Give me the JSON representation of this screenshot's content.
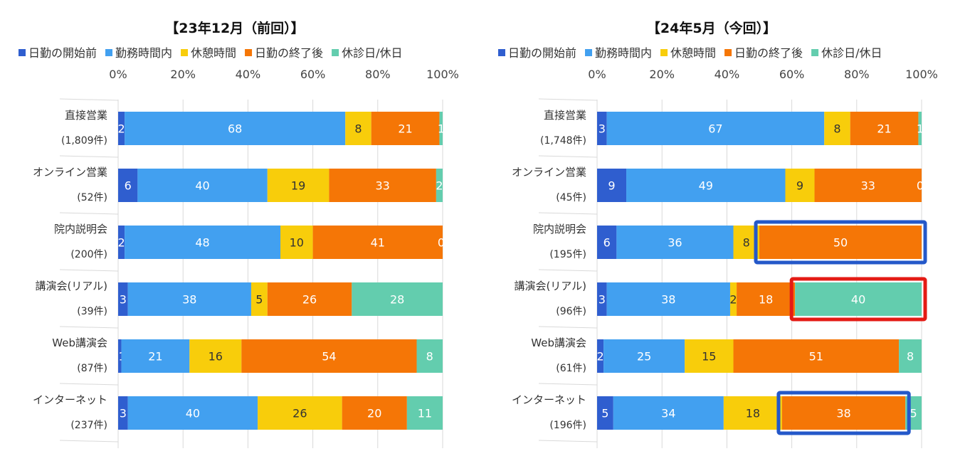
{
  "colors": {
    "日勤の開始前": "#2f5ecf",
    "勤務時間内": "#42a0f0",
    "休憩時間": "#f8cd0b",
    "日勤の終了後": "#f57606",
    "休診日/休日": "#63cdae",
    "highlight_blue": "#2458c9",
    "highlight_red": "#e41b14"
  },
  "chart_data": [
    {
      "type": "bar",
      "orientation": "horizontal",
      "stacked": true,
      "title": "【23年12月（前回）】",
      "xlim": [
        0,
        100
      ],
      "xticks": [
        "0%",
        "20%",
        "40%",
        "60%",
        "80%",
        "100%"
      ],
      "series_names": [
        "日勤の開始前",
        "勤務時間内",
        "休憩時間",
        "日勤の終了後",
        "休診日/休日"
      ],
      "categories": [
        {
          "name": "直接営業",
          "count": "(1,809件)",
          "values": [
            2,
            68,
            8,
            21,
            1
          ],
          "labels": [
            "2",
            "68",
            "8",
            "21",
            "1"
          ]
        },
        {
          "name": "オンライン営業",
          "count": "(52件)",
          "values": [
            6,
            40,
            19,
            33,
            2
          ],
          "labels": [
            "6",
            "40",
            "19",
            "33",
            "2"
          ]
        },
        {
          "name": "院内説明会",
          "count": "(200件)",
          "values": [
            2,
            48,
            10,
            41,
            0
          ],
          "labels": [
            "2",
            "48",
            "10",
            "41",
            "0"
          ]
        },
        {
          "name": "講演会(リアル)",
          "count": "(39件)",
          "values": [
            3,
            38,
            5,
            26,
            28
          ],
          "labels": [
            "3",
            "38",
            "5",
            "26",
            "28"
          ]
        },
        {
          "name": "Web講演会",
          "count": "(87件)",
          "values": [
            1,
            21,
            16,
            54,
            8
          ],
          "labels": [
            "1",
            "21",
            "16",
            "54",
            "8"
          ]
        },
        {
          "name": "インターネット",
          "count": "(237件)",
          "values": [
            3,
            40,
            26,
            20,
            11
          ],
          "labels": [
            "3",
            "40",
            "26",
            "20",
            "11"
          ]
        }
      ],
      "highlights": []
    },
    {
      "type": "bar",
      "orientation": "horizontal",
      "stacked": true,
      "title": "【24年5月（今回）】",
      "xlim": [
        0,
        100
      ],
      "xticks": [
        "0%",
        "20%",
        "40%",
        "60%",
        "80%",
        "100%"
      ],
      "series_names": [
        "日勤の開始前",
        "勤務時間内",
        "休憩時間",
        "日勤の終了後",
        "休診日/休日"
      ],
      "categories": [
        {
          "name": "直接営業",
          "count": "(1,748件)",
          "values": [
            3,
            67,
            8,
            21,
            1
          ],
          "labels": [
            "3",
            "67",
            "8",
            "21",
            "1"
          ]
        },
        {
          "name": "オンライン営業",
          "count": "(45件)",
          "values": [
            9,
            49,
            9,
            33,
            0
          ],
          "labels": [
            "9",
            "49",
            "9",
            "33",
            "0"
          ]
        },
        {
          "name": "院内説明会",
          "count": "(195件)",
          "values": [
            6,
            36,
            8,
            50,
            0
          ],
          "labels": [
            "6",
            "36",
            "8",
            "50",
            ""
          ]
        },
        {
          "name": "講演会(リアル)",
          "count": "(96件)",
          "values": [
            3,
            38,
            2,
            18,
            40
          ],
          "labels": [
            "3",
            "38",
            "2",
            "18",
            "40"
          ]
        },
        {
          "name": "Web講演会",
          "count": "(61件)",
          "values": [
            2,
            25,
            15,
            51,
            8
          ],
          "labels": [
            "2",
            "25",
            "15",
            "51",
            "8"
          ]
        },
        {
          "name": "インターネット",
          "count": "(196件)",
          "values": [
            5,
            34,
            18,
            38,
            5
          ],
          "labels": [
            "5",
            "34",
            "18",
            "38",
            "5"
          ]
        }
      ],
      "highlights": [
        {
          "category": 2,
          "series": 3,
          "color": "blue"
        },
        {
          "category": 3,
          "series": 4,
          "color": "red"
        },
        {
          "category": 5,
          "series": 3,
          "color": "blue"
        }
      ]
    }
  ]
}
